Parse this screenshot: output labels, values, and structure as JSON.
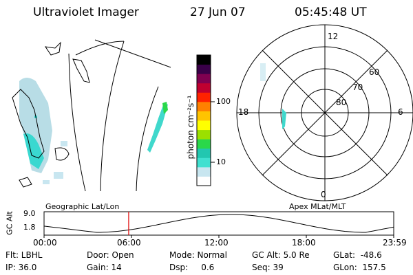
{
  "header": {
    "title": "Ultraviolet Imager",
    "date": "27 Jun 07",
    "time": "05:45:48 UT"
  },
  "colorbar": {
    "unit_label": "photon cm⁻²s⁻¹",
    "ticks": [
      "100",
      "10"
    ],
    "colors": [
      "#ffffff",
      "#c8e6f0",
      "#40e0d0",
      "#22c7b0",
      "#2ad84a",
      "#9be000",
      "#ffff00",
      "#ffc400",
      "#ff8000",
      "#ff2200",
      "#c00030",
      "#800050",
      "#3a0048",
      "#000000"
    ]
  },
  "polar": {
    "mlt_labels": [
      "12",
      "18",
      "6",
      "0"
    ],
    "lat_labels": [
      "60",
      "70",
      "80"
    ]
  },
  "timeline": {
    "left_caption": "Geographic Lat/Lon",
    "right_caption": "Apex  MLat/MLT",
    "y_axis_label": "GC Alt",
    "y_ticks": [
      "9.0",
      "1.8"
    ],
    "x_ticks": [
      "00:00",
      "06:00",
      "12:00",
      "18:00",
      "23:59"
    ],
    "current_time_fraction": 0.242
  },
  "status": {
    "flt": "Flt: LBHL",
    "ip": "IP: 36.0",
    "door": "Door: Open",
    "gain": "Gain: 14",
    "mode": "Mode: Normal",
    "dsp": "Dsp:     0.6",
    "gc_alt": "GC Alt: 5.0 Re",
    "seq": "Seq: 39",
    "glat": "GLat:  -48.6",
    "glon": "GLon:  157.5"
  }
}
